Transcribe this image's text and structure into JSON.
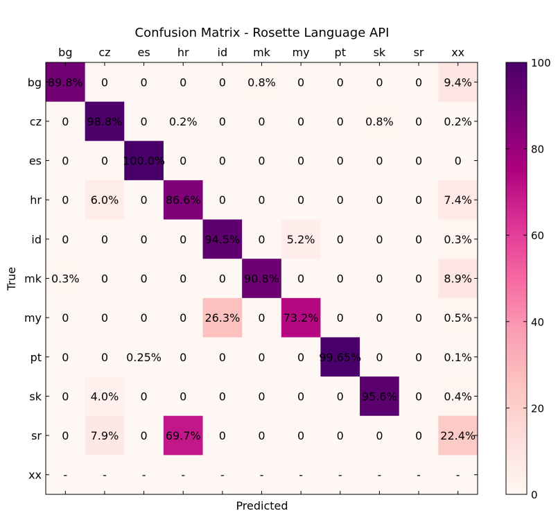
{
  "chart_data": {
    "type": "heatmap",
    "title": "Confusion Matrix - Rosette Language API",
    "xlabel": "Predicted",
    "ylabel": "True",
    "x_labels": [
      "bg",
      "cz",
      "es",
      "hr",
      "id",
      "mk",
      "my",
      "pt",
      "sk",
      "sr",
      "xx"
    ],
    "y_labels": [
      "bg",
      "cz",
      "es",
      "hr",
      "id",
      "mk",
      "my",
      "pt",
      "sk",
      "sr",
      "xx"
    ],
    "x_label_position": "top",
    "values": [
      [
        89.8,
        0,
        0,
        0,
        0,
        0.8,
        0,
        0,
        0,
        0,
        9.4
      ],
      [
        0,
        98.8,
        0,
        0.2,
        0,
        0,
        0,
        0,
        0.8,
        0,
        0.2
      ],
      [
        0,
        0,
        100.0,
        0,
        0,
        0,
        0,
        0,
        0,
        0,
        0
      ],
      [
        0,
        6.0,
        0,
        86.6,
        0,
        0,
        0,
        0,
        0,
        0,
        7.4
      ],
      [
        0,
        0,
        0,
        0,
        94.5,
        0,
        5.2,
        0,
        0,
        0,
        0.3
      ],
      [
        0.3,
        0,
        0,
        0,
        0,
        90.8,
        0,
        0,
        0,
        0,
        8.9
      ],
      [
        0,
        0,
        0,
        0,
        26.3,
        0,
        73.2,
        0,
        0,
        0,
        0.5
      ],
      [
        0,
        0,
        0.25,
        0,
        0,
        0,
        0,
        99.65,
        0,
        0,
        0.1
      ],
      [
        0,
        4.0,
        0,
        0,
        0,
        0,
        0,
        0,
        95.6,
        0,
        0.4
      ],
      [
        0,
        7.9,
        0,
        69.7,
        0,
        0,
        0,
        0,
        0,
        0,
        22.4
      ],
      [
        null,
        null,
        null,
        null,
        null,
        null,
        null,
        null,
        null,
        null,
        null
      ]
    ],
    "cell_labels": [
      [
        "89.8%",
        "0",
        "0",
        "0",
        "0",
        "0.8%",
        "0",
        "0",
        "0",
        "0",
        "9.4%"
      ],
      [
        "0",
        "98.8%",
        "0",
        "0.2%",
        "0",
        "0",
        "0",
        "0",
        "0.8%",
        "0",
        "0.2%"
      ],
      [
        "0",
        "0",
        "100.0%",
        "0",
        "0",
        "0",
        "0",
        "0",
        "0",
        "0",
        "0"
      ],
      [
        "0",
        "6.0%",
        "0",
        "86.6%",
        "0",
        "0",
        "0",
        "0",
        "0",
        "0",
        "7.4%"
      ],
      [
        "0",
        "0",
        "0",
        "0",
        "94.5%",
        "0",
        "5.2%",
        "0",
        "0",
        "0",
        "0.3%"
      ],
      [
        "0.3%",
        "0",
        "0",
        "0",
        "0",
        "90.8%",
        "0",
        "0",
        "0",
        "0",
        "8.9%"
      ],
      [
        "0",
        "0",
        "0",
        "0",
        "26.3%",
        "0",
        "73.2%",
        "0",
        "0",
        "0",
        "0.5%"
      ],
      [
        "0",
        "0",
        "0.25%",
        "0",
        "0",
        "0",
        "0",
        "99.65%",
        "0",
        "0",
        "0.1%"
      ],
      [
        "0",
        "4.0%",
        "0",
        "0",
        "0",
        "0",
        "0",
        "0",
        "95.6%",
        "0",
        "0.4%"
      ],
      [
        "0",
        "7.9%",
        "0",
        "69.7%",
        "0",
        "0",
        "0",
        "0",
        "0",
        "0",
        "22.4%"
      ],
      [
        "-",
        "-",
        "-",
        "-",
        "-",
        "-",
        "-",
        "-",
        "-",
        "-",
        "-"
      ]
    ],
    "colorbar": {
      "range": [
        0,
        100
      ],
      "ticks": [
        0,
        20,
        40,
        60,
        80,
        100
      ],
      "colormap": "RdPu",
      "stops": [
        "#fff7f3",
        "#fde0dd",
        "#fcc5c0",
        "#fa9fb5",
        "#f768a1",
        "#dd3497",
        "#ae017e",
        "#7a0177",
        "#49006a"
      ]
    },
    "grid": false
  }
}
